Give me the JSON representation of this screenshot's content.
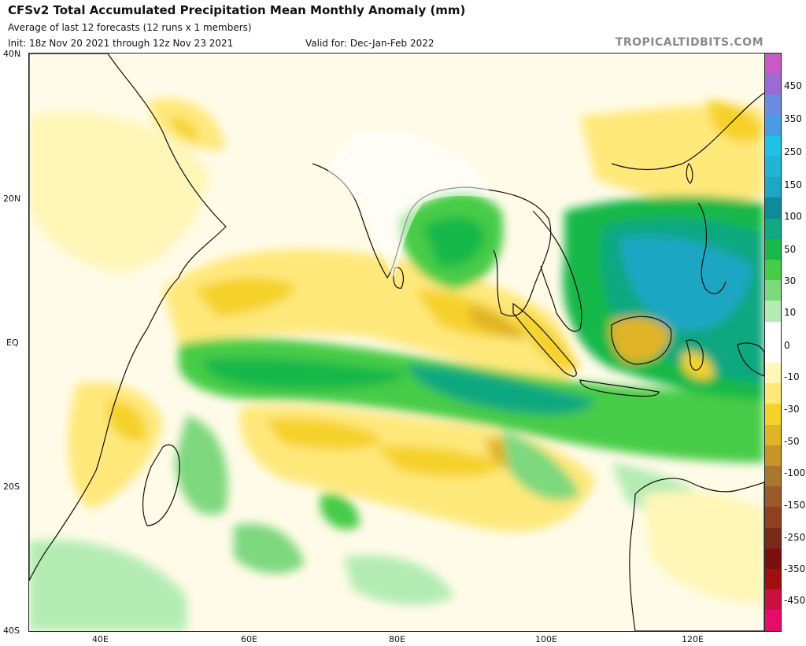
{
  "header": {
    "title": "CFSv2 Total Accumulated Precipitation Mean Monthly Anomaly (mm)",
    "subtitle": "Average of last 12 forecasts (12 runs x 1 members)",
    "init": "Init: 18z Nov 20 2021 through 12z Nov 23 2021",
    "valid": "Valid for: Dec-Jan-Feb 2022",
    "brand": "TROPICALTIDBITS.COM"
  },
  "map": {
    "lat_labels": [
      "40N",
      "20N",
      "EQ",
      "20S",
      "40S"
    ],
    "lon_labels": [
      "40E",
      "60E",
      "80E",
      "100E",
      "120E"
    ]
  },
  "colorbar": {
    "labels": [
      "450",
      "350",
      "250",
      "150",
      "100",
      "50",
      "30",
      "10",
      "0",
      "-10",
      "-30",
      "-50",
      "-100",
      "-150",
      "-250",
      "-350",
      "-450"
    ],
    "colors": [
      "#c85ac8",
      "#9a6ad6",
      "#6a8be0",
      "#4a9ae6",
      "#20c0e8",
      "#22b4d4",
      "#1ea6c4",
      "#0f8a9a",
      "#10a880",
      "#18b84a",
      "#46cc46",
      "#7ed87e",
      "#b4ecb4",
      "#ffffff",
      "#ffffff",
      "#fff6b8",
      "#ffe87a",
      "#f5d22c",
      "#e0b426",
      "#c89428",
      "#a87830",
      "#9a5a2a",
      "#904020",
      "#7a2a1a",
      "#7a0f10",
      "#a01010",
      "#cc1040",
      "#e80c6a"
    ]
  }
}
